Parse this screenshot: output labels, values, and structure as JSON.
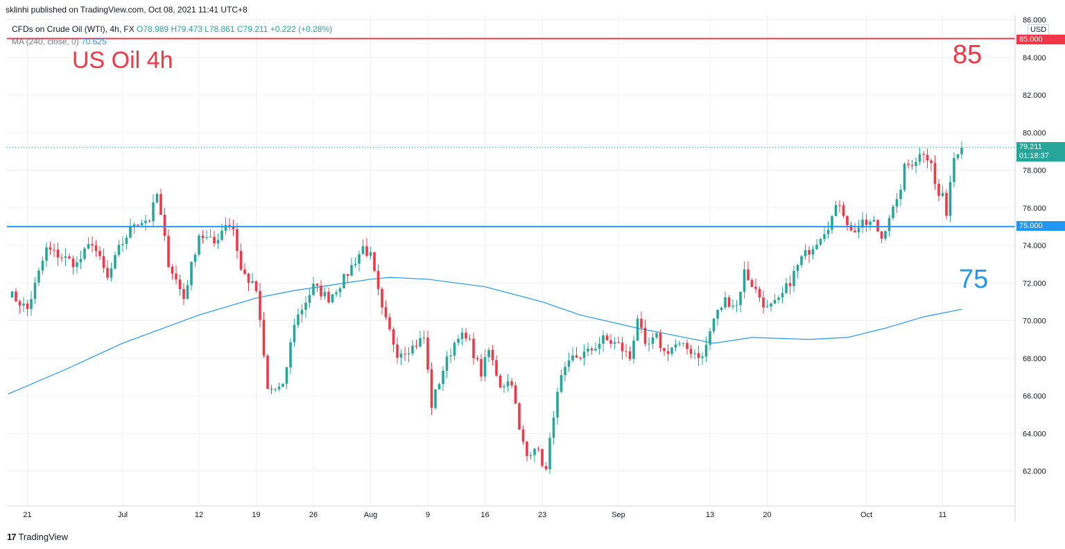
{
  "header": {
    "published_text": "sklinhi published on TradingView.com, Oct 08, 2021 11:41 UTC+8"
  },
  "legend": {
    "symbol": "CFDs on Crude Oil (WTI), 4h, FX",
    "open": "O78.989",
    "high": "H79.473",
    "low": "L78.861",
    "close": "C79.211",
    "change": "+0.222 (+0.28%)",
    "ma_label": "MA (240, close, 0)",
    "ma_value": "70.625"
  },
  "annotations": {
    "title": "US Oil 4h",
    "level_high_text": "85",
    "level_low_text": "75"
  },
  "price_tags": {
    "currency": "USD",
    "level_high": "85.000",
    "level_low": "75.000",
    "last_price": "79.211",
    "countdown": "01:18:37"
  },
  "footer": {
    "brand": "TradingView",
    "logo_text": "17"
  },
  "colors": {
    "up": "#26a69a",
    "down": "#f23645",
    "ma": "#2196f3",
    "level_high": "#f23645",
    "level_low": "#2196f3"
  },
  "chart_data": {
    "type": "candlestick",
    "y_ticks": [
      "62.000",
      "64.000",
      "66.000",
      "68.000",
      "70.000",
      "72.000",
      "74.000",
      "76.000",
      "78.000",
      "80.000",
      "82.000",
      "84.000",
      "86.000"
    ],
    "y_tick_values": [
      62,
      64,
      66,
      68,
      70,
      72,
      74,
      76,
      78,
      80,
      82,
      84,
      86
    ],
    "x_ticks": [
      {
        "label": "21",
        "idx": 5
      },
      {
        "label": "Jul",
        "idx": 30
      },
      {
        "label": "12",
        "idx": 50
      },
      {
        "label": "19",
        "idx": 65
      },
      {
        "label": "26",
        "idx": 80
      },
      {
        "label": "Aug",
        "idx": 95
      },
      {
        "label": "9",
        "idx": 110
      },
      {
        "label": "16",
        "idx": 125
      },
      {
        "label": "23",
        "idx": 140
      },
      {
        "label": "Sep",
        "idx": 160
      },
      {
        "label": "13",
        "idx": 184
      },
      {
        "label": "20",
        "idx": 199
      },
      {
        "label": "Oct",
        "idx": 225
      },
      {
        "label": "11",
        "idx": 245
      }
    ],
    "horizontal_levels": [
      85,
      75
    ],
    "last_price": 79.211,
    "waypoints": [
      [
        0,
        71.5
      ],
      [
        5,
        70.6
      ],
      [
        10,
        73.8
      ],
      [
        18,
        73.0
      ],
      [
        22,
        74.2
      ],
      [
        26,
        72.2
      ],
      [
        29,
        73.8
      ],
      [
        33,
        75.2
      ],
      [
        37,
        75.4
      ],
      [
        39,
        76.7
      ],
      [
        42,
        73.1
      ],
      [
        46,
        71.2
      ],
      [
        50,
        74.6
      ],
      [
        54,
        74.1
      ],
      [
        57,
        75.2
      ],
      [
        59,
        74.9
      ],
      [
        61,
        72.7
      ],
      [
        65,
        71.6
      ],
      [
        68,
        66.3
      ],
      [
        72,
        66.4
      ],
      [
        75,
        69.9
      ],
      [
        80,
        71.8
      ],
      [
        84,
        71.2
      ],
      [
        88,
        72.2
      ],
      [
        93,
        73.9
      ],
      [
        95,
        73.4
      ],
      [
        98,
        70.5
      ],
      [
        102,
        68.3
      ],
      [
        106,
        68.6
      ],
      [
        109,
        69.1
      ],
      [
        111,
        65.5
      ],
      [
        114,
        67.4
      ],
      [
        118,
        69.3
      ],
      [
        121,
        68.8
      ],
      [
        124,
        67.2
      ],
      [
        126,
        68.4
      ],
      [
        129,
        66.6
      ],
      [
        132,
        66.8
      ],
      [
        134,
        64.1
      ],
      [
        136,
        62.8
      ],
      [
        138,
        63.4
      ],
      [
        141,
        62.0
      ],
      [
        143,
        65.1
      ],
      [
        145,
        66.9
      ],
      [
        148,
        68.0
      ],
      [
        152,
        68.3
      ],
      [
        156,
        69.0
      ],
      [
        160,
        68.7
      ],
      [
        163,
        68.0
      ],
      [
        165,
        70.2
      ],
      [
        167,
        68.5
      ],
      [
        170,
        69.1
      ],
      [
        172,
        68.3
      ],
      [
        175,
        68.7
      ],
      [
        178,
        68.5
      ],
      [
        181,
        68.2
      ],
      [
        182,
        68.0
      ],
      [
        185,
        70.1
      ],
      [
        188,
        71.1
      ],
      [
        191,
        70.8
      ],
      [
        193,
        72.6
      ],
      [
        196,
        71.6
      ],
      [
        199,
        70.6
      ],
      [
        202,
        71.0
      ],
      [
        205,
        72.1
      ],
      [
        208,
        73.3
      ],
      [
        211,
        74.0
      ],
      [
        215,
        75.1
      ],
      [
        218,
        76.3
      ],
      [
        221,
        74.7
      ],
      [
        224,
        75.1
      ],
      [
        227,
        75.2
      ],
      [
        229,
        74.4
      ],
      [
        231,
        75.6
      ],
      [
        233,
        76.2
      ],
      [
        235,
        78.1
      ],
      [
        238,
        78.6
      ],
      [
        240,
        79.0
      ],
      [
        242,
        78.5
      ],
      [
        243,
        77.2
      ],
      [
        244,
        76.6
      ],
      [
        245,
        76.8
      ],
      [
        246,
        75.3
      ],
      [
        247,
        77.6
      ],
      [
        248,
        78.7
      ],
      [
        250,
        79.2
      ]
    ],
    "moving_average": {
      "period": 240,
      "points": [
        [
          0,
          66.1
        ],
        [
          15,
          67.4
        ],
        [
          30,
          68.8
        ],
        [
          50,
          70.3
        ],
        [
          65,
          71.2
        ],
        [
          75,
          71.6
        ],
        [
          85,
          71.9
        ],
        [
          95,
          72.2
        ],
        [
          100,
          72.3
        ],
        [
          110,
          72.2
        ],
        [
          125,
          71.8
        ],
        [
          140,
          71.0
        ],
        [
          150,
          70.3
        ],
        [
          165,
          69.6
        ],
        [
          175,
          69.2
        ],
        [
          185,
          68.8
        ],
        [
          195,
          69.1
        ],
        [
          210,
          69.0
        ],
        [
          220,
          69.1
        ],
        [
          230,
          69.6
        ],
        [
          240,
          70.2
        ],
        [
          250,
          70.6
        ]
      ]
    }
  }
}
